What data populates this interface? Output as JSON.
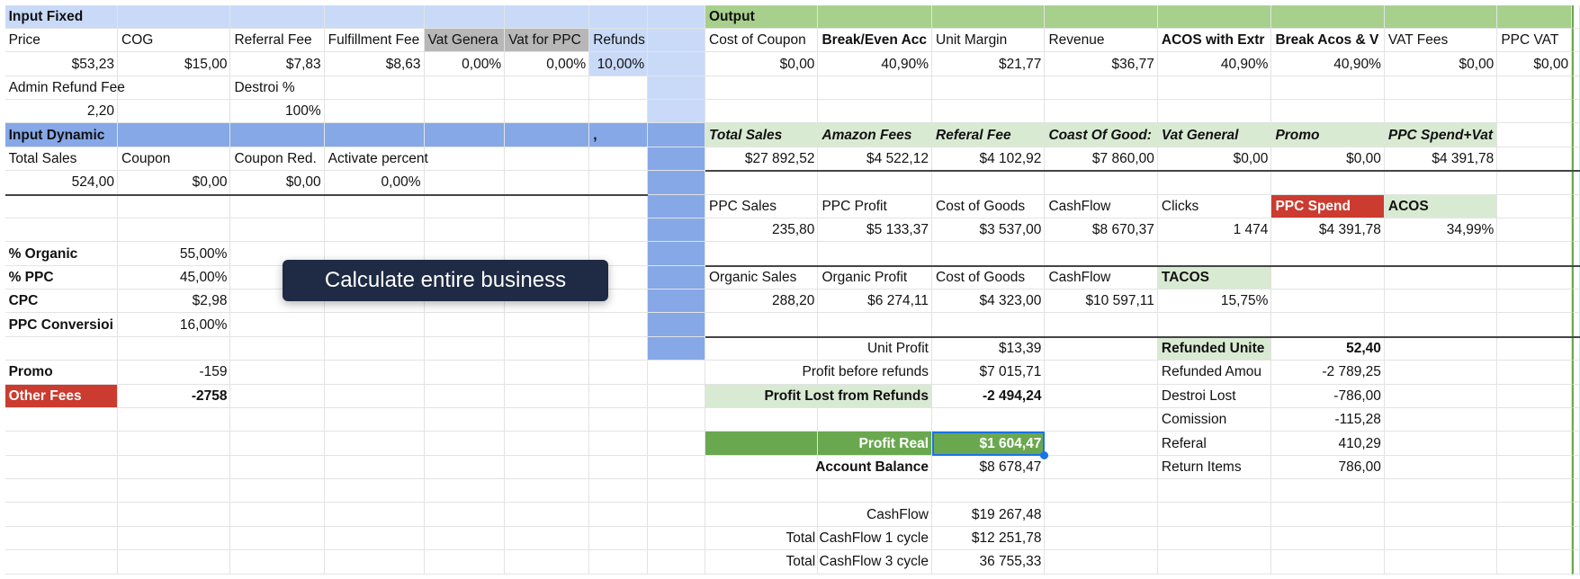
{
  "sheet": {
    "rows": [
      [
        "Input Fixed",
        null,
        null,
        null,
        null,
        null,
        null,
        null,
        "Output",
        null,
        null,
        null,
        null,
        null,
        null,
        null
      ],
      [
        "Price",
        "COG",
        "Referral Fee",
        "Fulfillment Fee",
        "Vat Genera",
        "Vat for PPC",
        "Refunds",
        null,
        "Cost of Coupon",
        "Break/Even Acc",
        "Unit Margin",
        "Revenue",
        "ACOS with Extr",
        "Break Acos & V",
        "VAT Fees",
        "PPC VAT"
      ],
      [
        "$53,23",
        "$15,00",
        "$7,83",
        "$8,63",
        "0,00%",
        "0,00%",
        "10,00%",
        null,
        "$0,00",
        "40,90%",
        "$21,77",
        "$36,77",
        "40,90%",
        "40,90%",
        "$0,00",
        "$0,00"
      ],
      [
        "Admin Refund Fee",
        null,
        "Destroi %",
        null,
        null,
        null,
        null,
        null,
        null,
        null,
        null,
        null,
        null,
        null,
        null,
        null
      ],
      [
        "2,20",
        null,
        "100%",
        null,
        null,
        null,
        null,
        null,
        null,
        null,
        null,
        null,
        null,
        null,
        null,
        null
      ],
      [
        "Input Dynamic",
        null,
        null,
        null,
        null,
        null,
        ",",
        null,
        "Total Sales",
        "Amazon Fees",
        "Referal Fee",
        "Coast Of Good:",
        "Vat General",
        "Promo",
        "PPC Spend+Vat",
        null
      ],
      [
        "Total Sales",
        "Coupon",
        "Coupon Red.",
        "Activate percent",
        null,
        null,
        null,
        null,
        "$27 892,52",
        "$4 522,12",
        "$4 102,92",
        "$7 860,00",
        "$0,00",
        "$0,00",
        "$4 391,78",
        null
      ],
      [
        "524,00",
        "$0,00",
        "$0,00",
        "0,00%",
        null,
        null,
        null,
        null,
        null,
        null,
        null,
        null,
        null,
        null,
        null,
        null
      ],
      [
        null,
        null,
        null,
        null,
        null,
        null,
        null,
        null,
        "PPC Sales",
        "PPC Profit",
        "Cost of Goods",
        "CashFlow",
        "Clicks",
        "PPC Spend",
        "ACOS",
        null
      ],
      [
        null,
        null,
        null,
        null,
        null,
        null,
        null,
        null,
        "235,80",
        "$5 133,37",
        "$3 537,00",
        "$8 670,37",
        "1 474",
        "$4 391,78",
        "34,99%",
        null
      ],
      [
        "% Organic",
        "55,00%",
        null,
        null,
        null,
        null,
        null,
        null,
        null,
        null,
        null,
        null,
        null,
        null,
        null,
        null
      ],
      [
        "% PPC",
        "45,00%",
        null,
        null,
        null,
        null,
        null,
        null,
        "Organic Sales",
        "Organic Profit",
        "Cost of Goods",
        "CashFlow",
        "TACOS",
        null,
        null,
        null
      ],
      [
        "CPC",
        "$2,98",
        null,
        null,
        null,
        null,
        null,
        null,
        "288,20",
        "$6 274,11",
        "$4 323,00",
        "$10 597,11",
        "15,75%",
        null,
        null,
        null
      ],
      [
        "PPC Conversioi",
        "16,00%",
        null,
        null,
        null,
        null,
        null,
        null,
        null,
        null,
        null,
        null,
        null,
        null,
        null,
        null
      ],
      [
        null,
        null,
        null,
        null,
        null,
        null,
        null,
        null,
        null,
        "Unit Profit",
        "$13,39",
        null,
        "Refunded Unite",
        "52,40",
        null,
        null
      ],
      [
        "Promo",
        "-159",
        null,
        null,
        null,
        null,
        null,
        null,
        null,
        "Profit before refunds",
        "$7 015,71",
        null,
        "Refunded Amou",
        "-2 789,25",
        null,
        null
      ],
      [
        "Other Fees",
        "-2758",
        null,
        null,
        null,
        null,
        null,
        null,
        null,
        "Profit Lost from Refunds",
        "-2 494,24",
        null,
        "Destroi Lost",
        "-786,00",
        null,
        null
      ],
      [
        null,
        null,
        null,
        null,
        null,
        null,
        null,
        null,
        null,
        null,
        null,
        null,
        "Comission",
        "-115,28",
        null,
        null
      ],
      [
        null,
        null,
        null,
        null,
        null,
        null,
        null,
        null,
        null,
        "Profit  Real",
        "$1 604,47",
        null,
        "Referal",
        "410,29",
        null,
        null
      ],
      [
        null,
        null,
        null,
        null,
        null,
        null,
        null,
        null,
        null,
        "Account Balance",
        "$8 678,47",
        null,
        "Return Items",
        "786,00",
        null,
        null
      ],
      [
        null,
        null,
        null,
        null,
        null,
        null,
        null,
        null,
        null,
        null,
        null,
        null,
        null,
        null,
        null,
        null
      ],
      [
        null,
        null,
        null,
        null,
        null,
        null,
        null,
        null,
        null,
        "CashFlow",
        "$19 267,48",
        null,
        null,
        null,
        null,
        null
      ],
      [
        null,
        null,
        null,
        null,
        null,
        null,
        null,
        null,
        null,
        "Total CashFlow 1 cycle",
        "$12 251,78",
        null,
        null,
        null,
        null,
        null
      ],
      [
        null,
        null,
        null,
        null,
        null,
        null,
        null,
        null,
        null,
        "Total CashFlow 3 cycle",
        "36 755,33",
        null,
        null,
        null,
        null,
        null
      ]
    ],
    "tooltip": "Calculate entire business"
  }
}
